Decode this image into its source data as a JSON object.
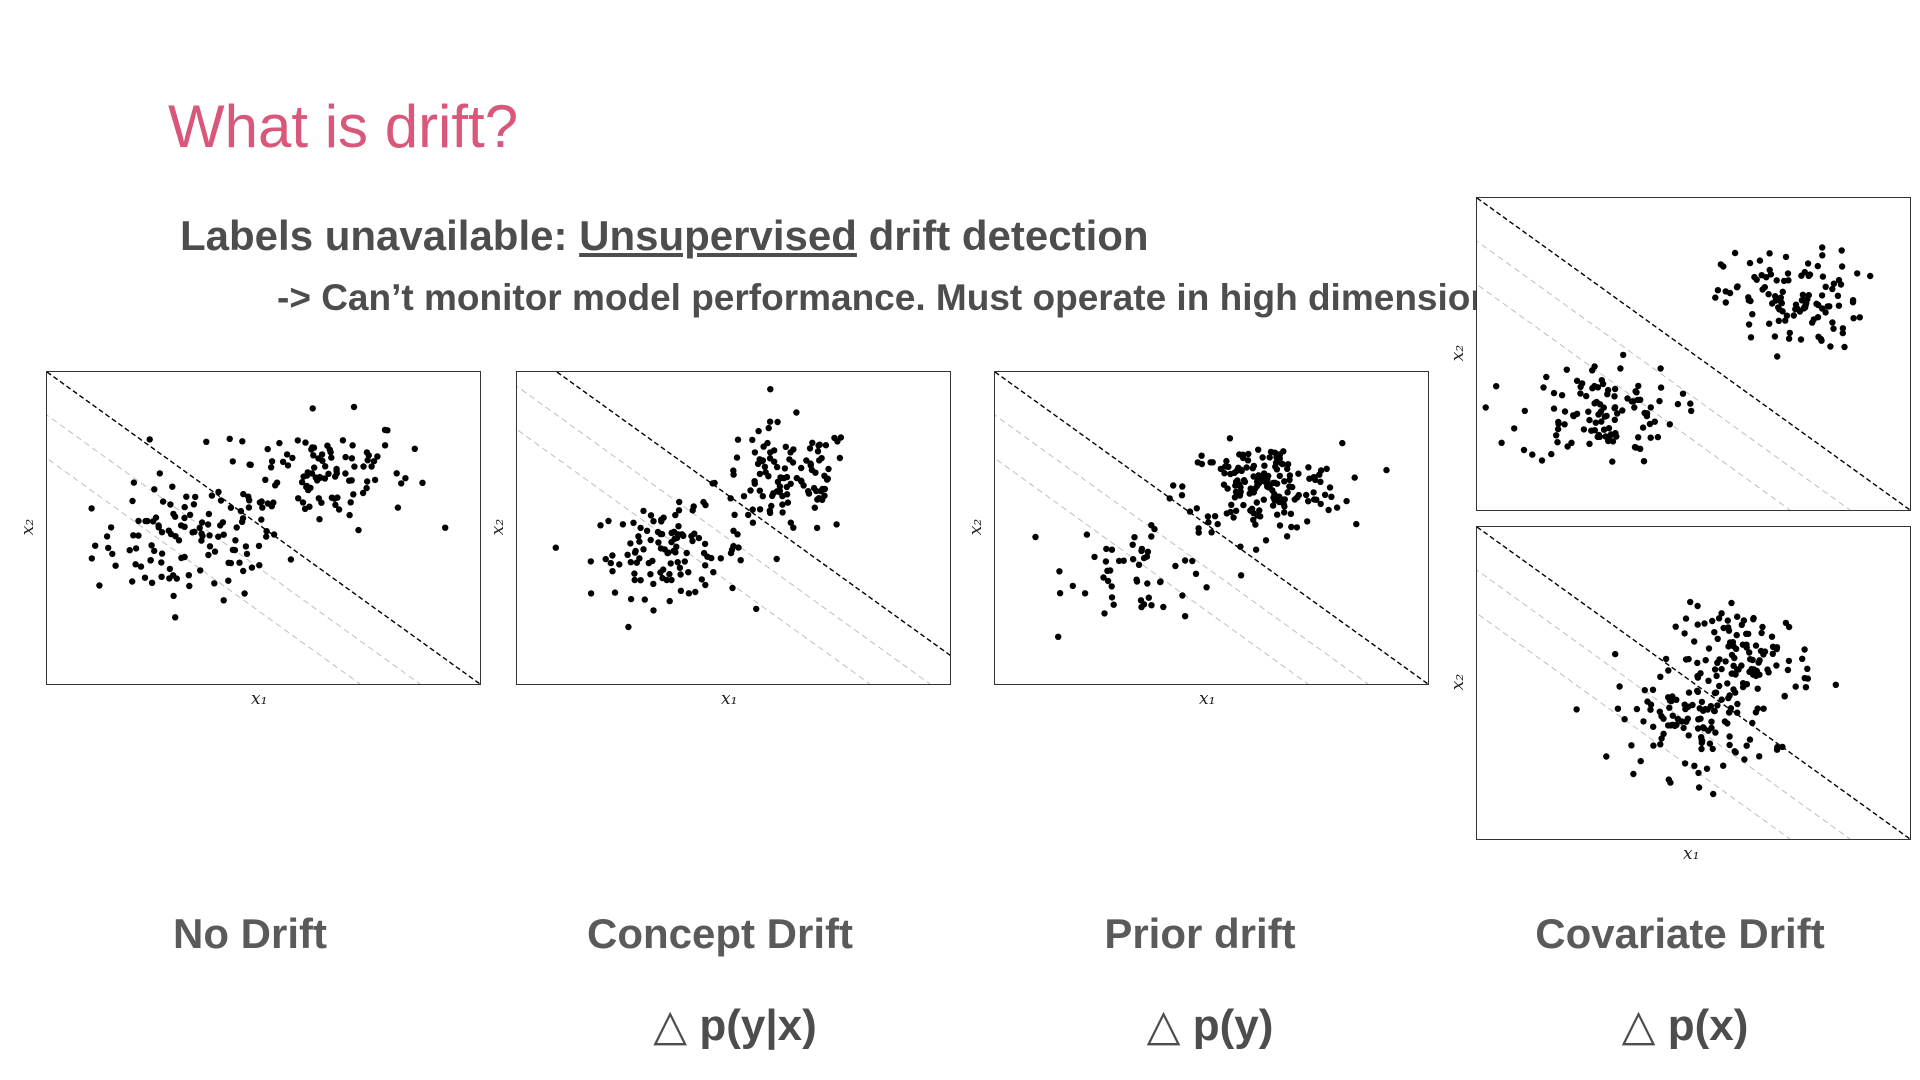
{
  "slide": {
    "title": "What is drift?",
    "subtitle_prefix": "Labels unavailable: ",
    "subtitle_underlined": "Unsupervised",
    "subtitle_suffix": " drift detection",
    "subline": "-> Can’t monitor model performance. Must operate in high dimensions."
  },
  "axis_labels": {
    "x": "x₁",
    "y": "x₂"
  },
  "captions": [
    "No Drift",
    "Concept Drift",
    "Prior drift",
    "Covariate Drift"
  ],
  "formulas": [
    "△ p(y|x)",
    "△ p(y)",
    "△ p(x)"
  ],
  "colors": {
    "title": "#d9577b",
    "text": "#4d4d4d",
    "points": "#000000",
    "boundary": "#000000",
    "margin": "#bfbfbf"
  },
  "chart_data": [
    {
      "type": "scatter",
      "name": "No Drift",
      "xlabel": "x₁",
      "ylabel": "x₂",
      "grid": false,
      "clusters": [
        {
          "cx": 0.33,
          "cy": 0.45,
          "sx": 0.11,
          "sy": 0.09,
          "n": 110
        },
        {
          "cx": 0.62,
          "cy": 0.68,
          "sx": 0.11,
          "sy": 0.09,
          "n": 110
        }
      ],
      "boundary": "dashed diagonal line with two light-gray parallel margins"
    },
    {
      "type": "scatter",
      "name": "Concept Drift",
      "xlabel": "x₁",
      "ylabel": "x₂",
      "grid": false,
      "clusters": [
        {
          "cx": 0.35,
          "cy": 0.42,
          "sx": 0.09,
          "sy": 0.07,
          "n": 110
        },
        {
          "cx": 0.62,
          "cy": 0.65,
          "sx": 0.08,
          "sy": 0.09,
          "n": 110
        }
      ],
      "boundary": "dashed diagonal line shifted right with two light-gray parallel margins"
    },
    {
      "type": "scatter",
      "name": "Prior drift",
      "xlabel": "x₁",
      "ylabel": "x₂",
      "grid": false,
      "clusters": [
        {
          "cx": 0.35,
          "cy": 0.38,
          "sx": 0.09,
          "sy": 0.09,
          "n": 55
        },
        {
          "cx": 0.62,
          "cy": 0.63,
          "sx": 0.09,
          "sy": 0.07,
          "n": 170
        }
      ],
      "boundary": "dashed diagonal line with two light-gray parallel margins"
    },
    {
      "type": "scatter",
      "name": "Covariate Drift (source)",
      "xlabel": "",
      "ylabel": "x₂",
      "grid": false,
      "clusters": [
        {
          "cx": 0.28,
          "cy": 0.31,
          "sx": 0.09,
          "sy": 0.08,
          "n": 110
        },
        {
          "cx": 0.73,
          "cy": 0.67,
          "sx": 0.08,
          "sy": 0.08,
          "n": 110
        }
      ],
      "boundary": "dashed diagonal line with two light-gray parallel margins"
    },
    {
      "type": "scatter",
      "name": "Covariate Drift (target)",
      "xlabel": "x₁",
      "ylabel": "x₂",
      "grid": false,
      "clusters": [
        {
          "cx": 0.5,
          "cy": 0.38,
          "sx": 0.09,
          "sy": 0.09,
          "n": 110
        },
        {
          "cx": 0.62,
          "cy": 0.58,
          "sx": 0.08,
          "sy": 0.08,
          "n": 110
        }
      ],
      "boundary": "dashed diagonal line with two light-gray parallel margins"
    }
  ]
}
